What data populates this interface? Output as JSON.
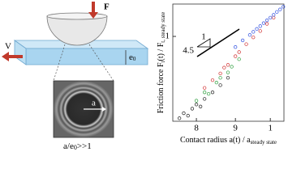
{
  "diagram": {
    "force_label": "F",
    "velocity_label": "V",
    "thickness_label": [
      "e",
      "0"
    ],
    "radius_label": "a",
    "ratio_label": [
      "a/e",
      "0",
      ">>1"
    ]
  },
  "chart_data": {
    "type": "scatter",
    "xlabel": [
      "Contact radius a(t) / a",
      "steady state"
    ],
    "ylabel": [
      "Friction force F",
      "t",
      "(t) / F",
      "t, steady state"
    ],
    "log_x": true,
    "log_y": true,
    "xlim": [
      0.745,
      1.042
    ],
    "ylim": [
      0.169,
      1.97
    ],
    "xticks": [
      {
        "value": 0.8,
        "label": "8"
      },
      {
        "value": 0.9,
        "label": "9"
      },
      1
    ],
    "yticks": [
      1
    ],
    "annotations": {
      "slope_run": "1",
      "slope_rise": "4.5"
    },
    "series": [
      {
        "color": "#222222",
        "x": [
          0.76,
          0.77,
          0.78,
          0.79,
          0.8,
          0.81,
          0.82,
          0.84,
          0.86,
          0.88
        ],
        "values": [
          0.18,
          0.2,
          0.19,
          0.22,
          0.24,
          0.23,
          0.27,
          0.31,
          0.36,
          0.42
        ]
      },
      {
        "color": "#2e9e3e",
        "x": [
          0.8,
          0.82,
          0.83,
          0.85,
          0.86,
          0.88,
          0.89,
          0.91
        ],
        "values": [
          0.26,
          0.31,
          0.3,
          0.38,
          0.42,
          0.47,
          0.53,
          0.62
        ]
      },
      {
        "color": "#d03030",
        "x": [
          0.82,
          0.84,
          0.86,
          0.87,
          0.88,
          0.9,
          0.91,
          0.93,
          0.95,
          0.97,
          0.99,
          1.01
        ],
        "values": [
          0.34,
          0.4,
          0.46,
          0.52,
          0.55,
          0.66,
          0.72,
          0.85,
          0.98,
          1.12,
          1.3,
          1.48
        ]
      },
      {
        "color": "#3050e0",
        "x": [
          0.9,
          0.92,
          0.94,
          0.95,
          0.96,
          0.97,
          0.98,
          0.99,
          1.0,
          1.01,
          1.02,
          1.03,
          1.04
        ],
        "values": [
          0.8,
          0.92,
          1.03,
          1.1,
          1.17,
          1.24,
          1.32,
          1.4,
          1.48,
          1.57,
          1.67,
          1.76,
          1.86
        ]
      }
    ]
  }
}
